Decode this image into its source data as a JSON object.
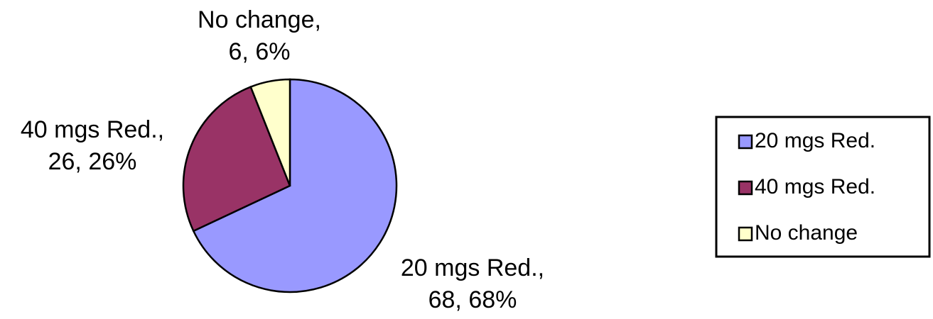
{
  "chart_data": {
    "type": "pie",
    "categories": [
      "20 mgs Red.",
      "40 mgs Red.",
      "No change"
    ],
    "values": [
      68,
      26,
      6
    ],
    "value_labels": [
      "20 mgs Red., 68, 68%",
      "40 mgs Red., 26, 26%",
      "No change, 6, 6%"
    ],
    "colors": [
      "#9999ff",
      "#993366",
      "#ffffcc"
    ],
    "legend": "right"
  }
}
